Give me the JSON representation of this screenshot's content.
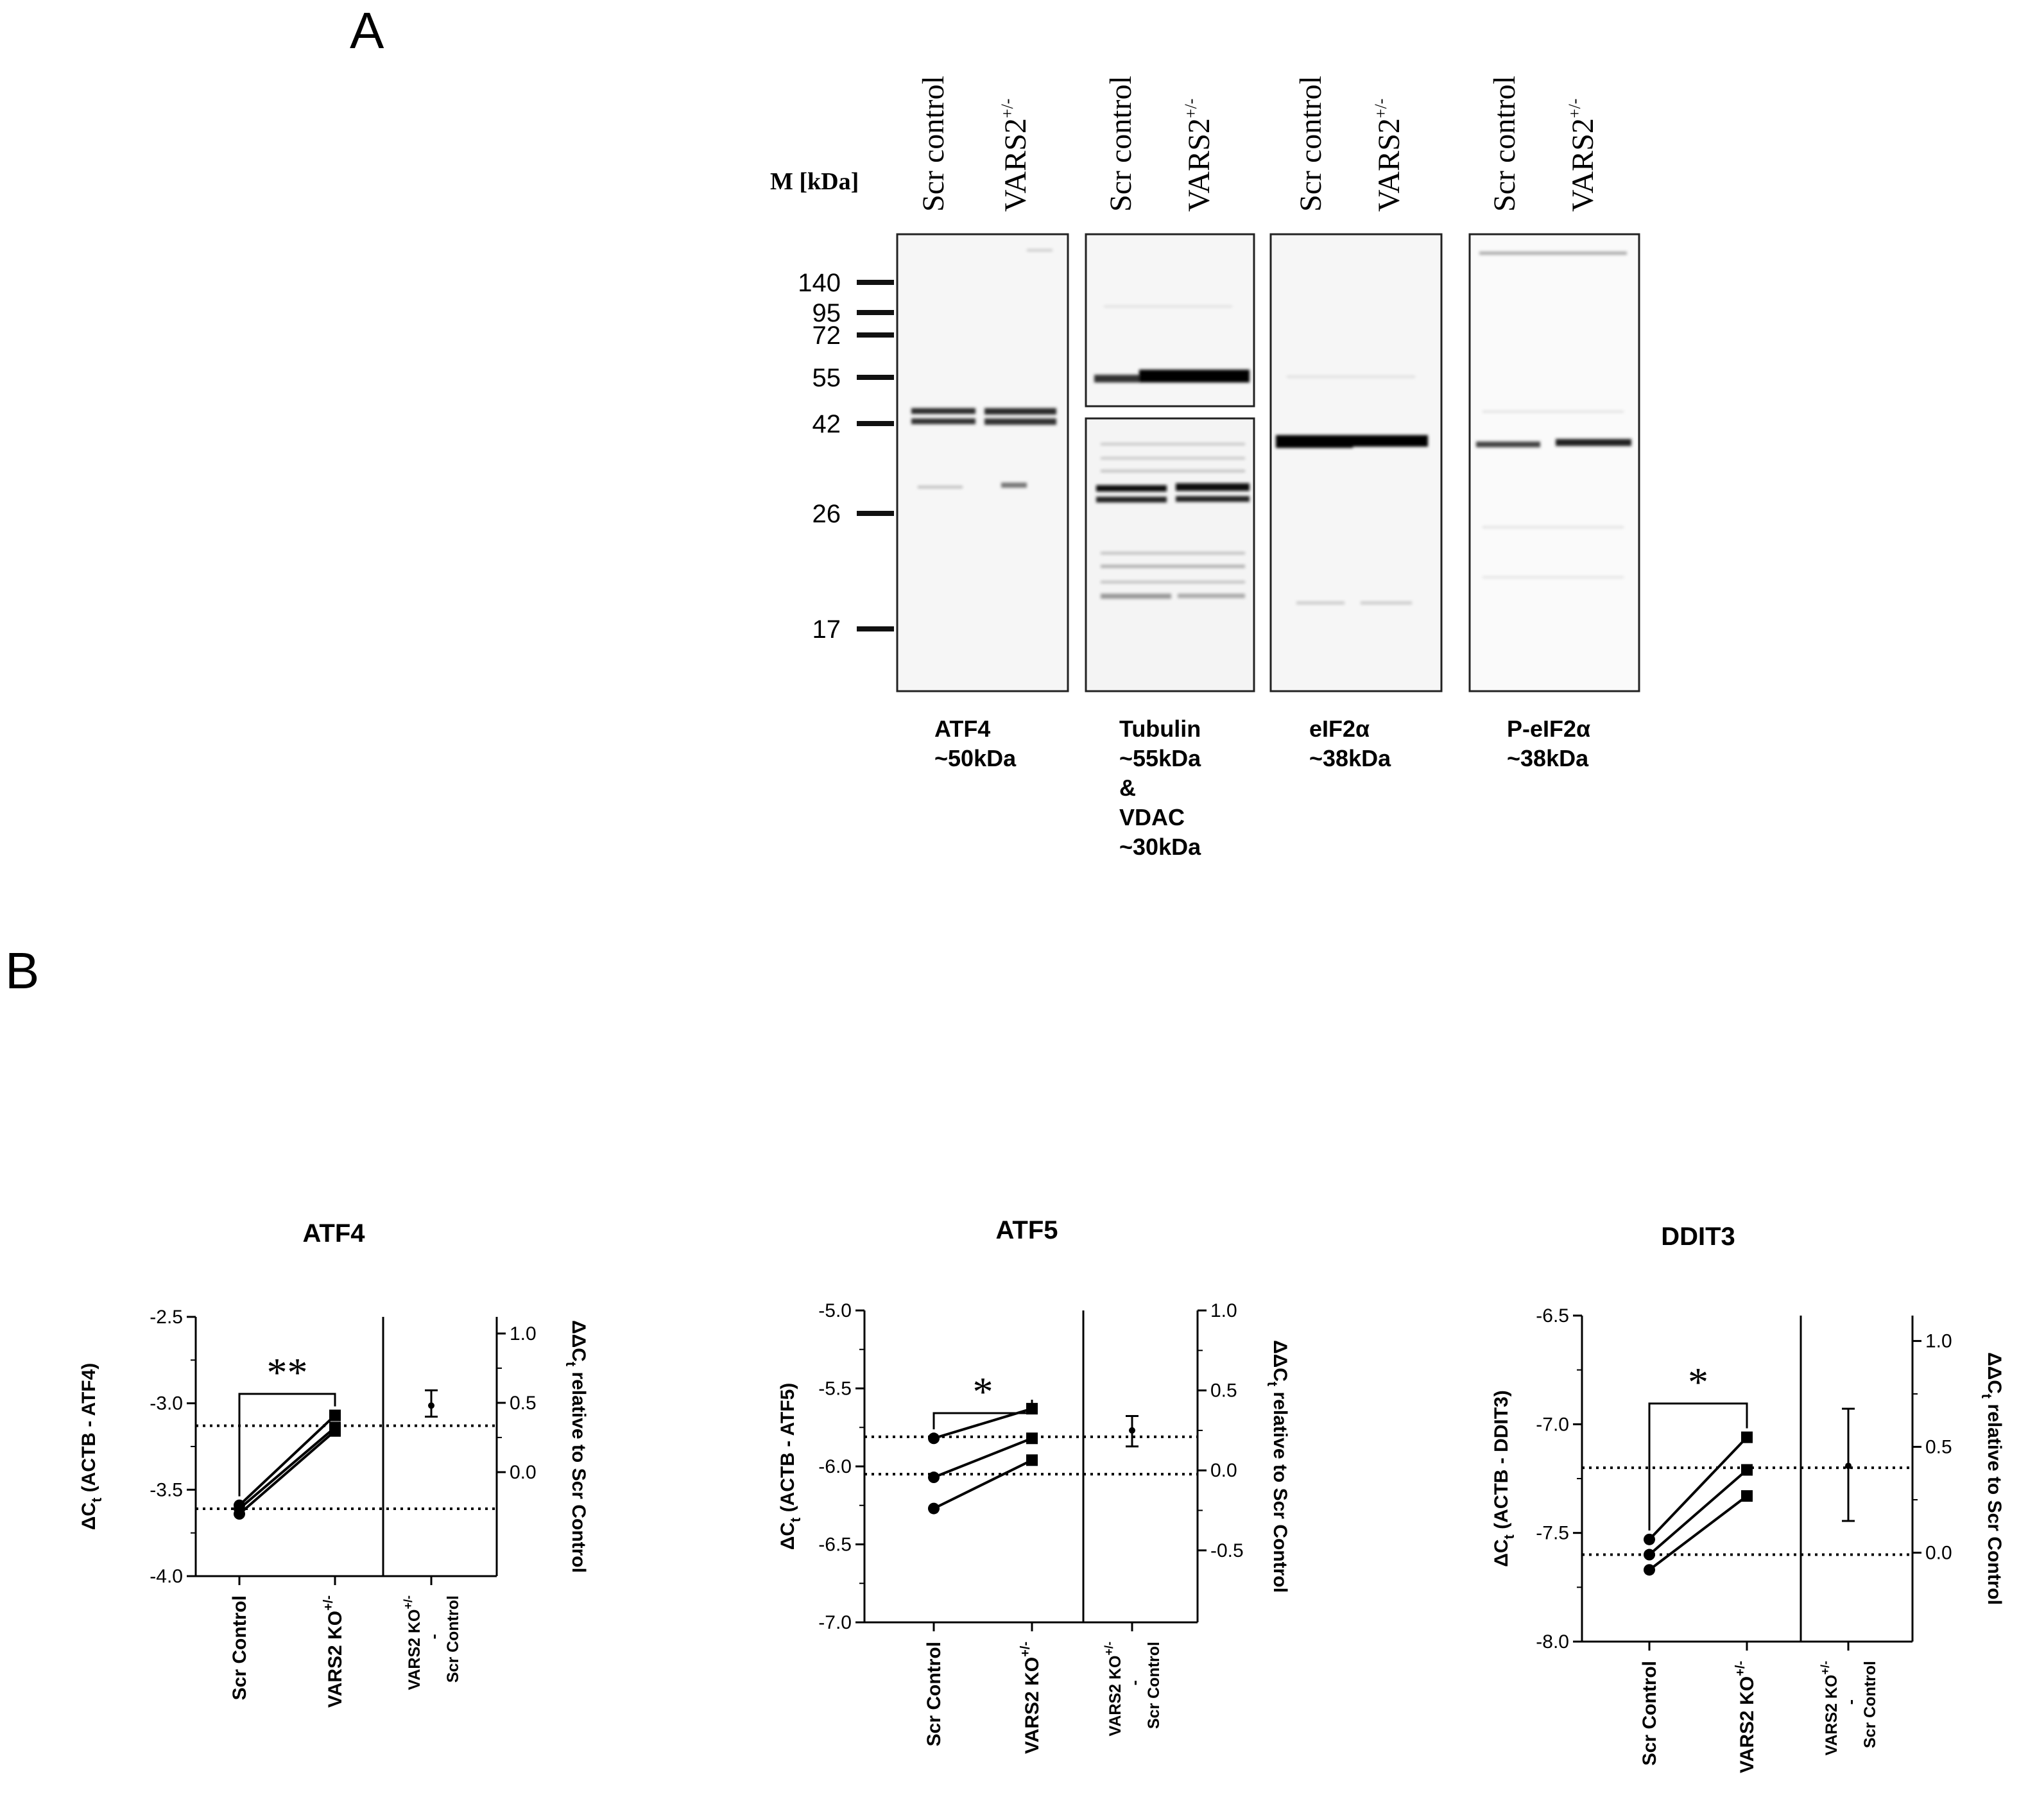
{
  "panel_a": {
    "letter": "A",
    "marker_header": "M [kDa]",
    "lane_labels": [
      {
        "text": "Scr control",
        "sup": ""
      },
      {
        "text": "VARS2",
        "sup": "+/-"
      }
    ],
    "marker_ladder": [
      140,
      95,
      72,
      55,
      42,
      26,
      17
    ],
    "blots": [
      {
        "name": "atf4",
        "label_lines": [
          "ATF4",
          "~50kDa"
        ]
      },
      {
        "name": "tubulin-vdac",
        "label_lines": [
          "Tubulin",
          "~55kDa",
          "&",
          "VDAC",
          "~30kDa"
        ]
      },
      {
        "name": "eif2a",
        "label_lines": [
          "eIF2α",
          "~38kDa"
        ]
      },
      {
        "name": "p-eif2a",
        "label_lines": [
          "P-eIF2α",
          "~38kDa"
        ]
      }
    ]
  },
  "panel_b": {
    "letter": "B"
  },
  "chart_data": [
    {
      "type": "scatter",
      "title": "ATF4",
      "ylabel_left": "ΔCt (ACTB - ATF4)",
      "ylabel_left_main": "ΔC",
      "ylabel_left_sub": "t",
      "ylabel_left_rest": " (ACTB - ATF4)",
      "ylabel_right_main": "ΔΔC",
      "ylabel_right_sub": "t",
      "ylabel_right_rest": " relative to Scr Control",
      "categories": [
        "Scr Control",
        "VARS2 KO+/-"
      ],
      "categories_text": [
        "Scr Control",
        "VARS2 KO"
      ],
      "categories_sup": [
        "",
        "+/-"
      ],
      "diff_label": [
        "VARS2 KO+/-",
        "-",
        "Scr Control"
      ],
      "diff_label_top": "VARS2 KO",
      "diff_label_top_sup": "+/-",
      "diff_label_mid": "-",
      "diff_label_bottom": "Scr Control",
      "ylim_left": [
        -4.0,
        -2.5
      ],
      "yticks_left": [
        -2.5,
        -3.0,
        -3.5,
        -4.0
      ],
      "yticks_left_text": [
        "-2.5",
        "-3.0",
        "-3.5",
        "-4.0"
      ],
      "ylim_right": [
        -0.75,
        1.12
      ],
      "yticks_right": [
        1.0,
        0.5,
        0.0
      ],
      "yticks_right_text": [
        "1.0",
        "0.5",
        "0.0"
      ],
      "pairs": [
        [
          -3.59,
          -3.07
        ],
        [
          -3.61,
          -3.14
        ],
        [
          -3.64,
          -3.16
        ]
      ],
      "ref_lines_left": [
        -3.61,
        -3.13
      ],
      "diff_mean": 0.48,
      "diff_err": [
        0.4,
        0.59
      ],
      "significance": "**"
    },
    {
      "type": "scatter",
      "title": "ATF5",
      "ylabel_left": "ΔCt (ACTB - ATF5)",
      "ylabel_left_main": "ΔC",
      "ylabel_left_sub": "t",
      "ylabel_left_rest": " (ACTB - ATF5)",
      "ylabel_right_main": "ΔΔC",
      "ylabel_right_sub": "t",
      "ylabel_right_rest": " relative to Scr Control",
      "categories": [
        "Scr Control",
        "VARS2 KO+/-"
      ],
      "categories_text": [
        "Scr Control",
        "VARS2 KO"
      ],
      "categories_sup": [
        "",
        "+/-"
      ],
      "diff_label": [
        "VARS2 KO+/-",
        "-",
        "Scr Control"
      ],
      "diff_label_top": "VARS2 KO",
      "diff_label_top_sup": "+/-",
      "diff_label_mid": "-",
      "diff_label_bottom": "Scr Control",
      "ylim_left": [
        -7.0,
        -5.0
      ],
      "yticks_left": [
        -5.0,
        -5.5,
        -6.0,
        -6.5,
        -7.0
      ],
      "yticks_left_text": [
        "-5.0",
        "-5.5",
        "-6.0",
        "-6.5",
        "-7.0"
      ],
      "ylim_right": [
        -0.95,
        1.0
      ],
      "yticks_right": [
        1.0,
        0.5,
        0.0,
        -0.5
      ],
      "yticks_right_text": [
        "1.0",
        "0.5",
        "0.0",
        "-0.5"
      ],
      "pairs": [
        [
          -5.82,
          -5.63
        ],
        [
          -6.07,
          -5.82
        ],
        [
          -6.27,
          -5.96
        ]
      ],
      "ref_lines_left": [
        -6.05,
        -5.81
      ],
      "diff_mean": 0.25,
      "diff_err": [
        0.15,
        0.34
      ],
      "significance": "*"
    },
    {
      "type": "scatter",
      "title": "DDIT3",
      "ylabel_left": "ΔCt (ACTB - DDIT3)",
      "ylabel_left_main": "ΔC",
      "ylabel_left_sub": "t",
      "ylabel_left_rest": " (ACTB - DDIT3)",
      "ylabel_right_main": "ΔΔC",
      "ylabel_right_sub": "t",
      "ylabel_right_rest": " relative to Scr Control",
      "categories": [
        "Scr Control",
        "VARS2 KO+/-"
      ],
      "categories_text": [
        "Scr Control",
        "VARS2 KO"
      ],
      "categories_sup": [
        "",
        "+/-"
      ],
      "diff_label": [
        "VARS2 KO+/-",
        "-",
        "Scr Control"
      ],
      "diff_label_top": "VARS2 KO",
      "diff_label_top_sup": "+/-",
      "diff_label_mid": "-",
      "diff_label_bottom": "Scr Control",
      "ylim_left": [
        -8.0,
        -6.5
      ],
      "yticks_left": [
        -6.5,
        -7.0,
        -7.5,
        -8.0
      ],
      "yticks_left_text": [
        "-6.5",
        "-7.0",
        "-7.5",
        "-8.0"
      ],
      "ylim_right": [
        -0.42,
        1.12
      ],
      "yticks_right": [
        1.0,
        0.5,
        0.0
      ],
      "yticks_right_text": [
        "1.0",
        "0.5",
        "0.0"
      ],
      "pairs": [
        [
          -7.53,
          -7.06
        ],
        [
          -7.6,
          -7.21
        ],
        [
          -7.67,
          -7.33
        ]
      ],
      "ref_lines_left": [
        -7.6,
        -7.2
      ],
      "diff_mean": 0.41,
      "diff_err": [
        0.15,
        0.68
      ],
      "significance": "*"
    }
  ]
}
